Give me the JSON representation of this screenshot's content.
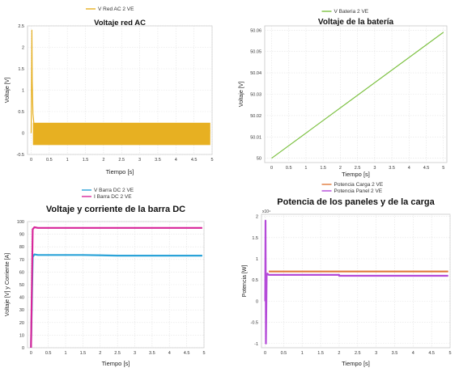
{
  "chart_data": [
    {
      "type": "line",
      "title": "Voltaje red AC",
      "xlabel": "Tiempo [s]",
      "ylabel": "Voltaje [V]",
      "xlim": [
        -0.1,
        5.0
      ],
      "ylim": [
        -0.5,
        2.5
      ],
      "xticks": [
        "0",
        "0.5",
        "1",
        "1.5",
        "2",
        "2.5",
        "3",
        "3.5",
        "4",
        "4.5",
        "5"
      ],
      "yticks": [
        "-0.5",
        "0",
        "0.5",
        "1",
        "1.5",
        "2",
        "2.5"
      ],
      "grid": true,
      "legend_position": "top-center",
      "series": [
        {
          "name": "V Red AC 2 VE",
          "color": "#e7b022",
          "x": [
            0,
            0.02,
            0.03,
            0.05,
            0.08,
            0.12,
            4.95
          ],
          "y": [
            0,
            2.4,
            1.2,
            0.45,
            0.2,
            0.05,
            0.05
          ],
          "band_min": -0.28,
          "band_max": 0.24,
          "band_from": 0.05
        }
      ]
    },
    {
      "type": "line",
      "title": "Voltaje de la batería",
      "xlabel": "Tiempo [s]",
      "ylabel": "Voltaje [V]",
      "xlim": [
        -0.2,
        5.1
      ],
      "ylim": [
        49.998,
        50.062
      ],
      "xticks": [
        "0",
        "0.5",
        "1",
        "1.5",
        "2",
        "2.5",
        "3",
        "3.5",
        "4",
        "4.5",
        "5"
      ],
      "yticks": [
        "50",
        "50.01",
        "50.02",
        "50.03",
        "50.04",
        "50.05",
        "50.06"
      ],
      "grid": true,
      "legend_position": "top-center",
      "series": [
        {
          "name": "V Bateria 2 VE",
          "color": "#7dc142",
          "x": [
            0,
            5.0
          ],
          "y": [
            50.0,
            50.059
          ]
        }
      ]
    },
    {
      "type": "line",
      "title": "Voltaje y corriente de la barra DC",
      "xlabel": "Tiempo [s]",
      "ylabel": "Voltaje [V] y Corriente [A]",
      "xlim": [
        -0.1,
        5.0
      ],
      "ylim": [
        0,
        100
      ],
      "xticks": [
        "0",
        "0.5",
        "1",
        "1.5",
        "2",
        "2.5",
        "3",
        "3.5",
        "4",
        "4.5",
        "5"
      ],
      "yticks": [
        "0",
        "10",
        "20",
        "30",
        "40",
        "50",
        "60",
        "70",
        "80",
        "90",
        "100"
      ],
      "grid": true,
      "legend_position": "top-center",
      "series": [
        {
          "name": "V Barra DC 2 VE",
          "color": "#2ba3d8",
          "x": [
            0,
            0.05,
            0.1,
            0.2,
            1.5,
            2.5,
            4.95
          ],
          "y": [
            0,
            72,
            74,
            73.5,
            73.5,
            73,
            73
          ]
        },
        {
          "name": "I Barra DC 2 VE",
          "color": "#d8269a",
          "x": [
            0,
            0.05,
            0.1,
            0.2,
            1.5,
            2.5,
            4.95
          ],
          "y": [
            0,
            94,
            95.5,
            95,
            95,
            95,
            95
          ]
        }
      ]
    },
    {
      "type": "line",
      "title": "Potencia de los paneles y de la carga",
      "xlabel": "Tiempo [s]",
      "ylabel": "Potencia [W]",
      "xlim": [
        -0.1,
        5.0
      ],
      "ylim": [
        -1.1,
        2.05
      ],
      "ylabel_multiplier": "x10⁴",
      "xticks": [
        "0",
        "0.5",
        "1",
        "1.5",
        "2",
        "2.5",
        "3",
        "3.5",
        "4",
        "4.5",
        "5"
      ],
      "yticks": [
        "-1",
        "-0.5",
        "0",
        "0.5",
        "1",
        "1.5",
        "2"
      ],
      "grid": true,
      "legend_position": "top-center",
      "series": [
        {
          "name": "Potencia Carga 2 VE",
          "color": "#e07a3c",
          "x": [
            0.1,
            4.95
          ],
          "y": [
            0.7,
            0.7
          ]
        },
        {
          "name": "Potencia Panel 2 VE",
          "color": "#b44ad8",
          "x": [
            0,
            0.01,
            0.02,
            0.04,
            0.06,
            0.1,
            2.0,
            2.0,
            4.95
          ],
          "y": [
            0,
            1.9,
            -1.0,
            0.6,
            0.65,
            0.62,
            0.62,
            0.6,
            0.6
          ]
        }
      ]
    }
  ]
}
